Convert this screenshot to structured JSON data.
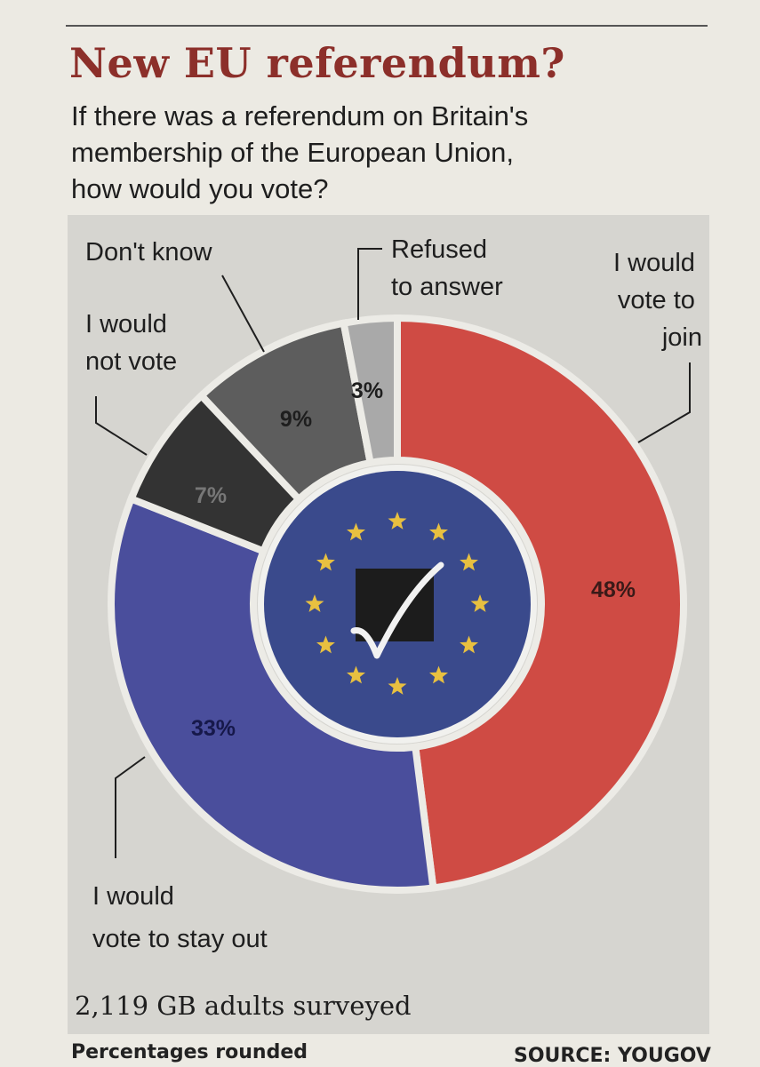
{
  "title": "New EU referendum?",
  "subtitle_lines": [
    "If there was a referendum on Britain's",
    "membership of the European Union,",
    "how would you vote?"
  ],
  "chart_data": {
    "type": "pie",
    "style": "donut",
    "slices": [
      {
        "label": "I would vote to join",
        "value": 48,
        "value_label": "48%",
        "color": "#cf4b44"
      },
      {
        "label": "I would vote to stay out",
        "value": 33,
        "value_label": "33%",
        "color": "#4a4e9c"
      },
      {
        "label": "I would not vote",
        "value": 7,
        "value_label": "7%",
        "color": "#333333"
      },
      {
        "label": "Don't know",
        "value": 9,
        "value_label": "9%",
        "color": "#5d5d5d"
      },
      {
        "label": "Refused to answer",
        "value": 3,
        "value_label": "3%",
        "color": "#a9a9a9"
      }
    ]
  },
  "labels": {
    "join": [
      "I would",
      "vote to",
      "join"
    ],
    "stay_out": [
      "I would",
      "vote to stay out"
    ],
    "not_vote": [
      "I would",
      "not vote"
    ],
    "dont_know": [
      "Don't know"
    ],
    "refused": [
      "Refused",
      "to answer"
    ]
  },
  "center_emblem": {
    "icon": "eu-flag-ballot-check-icon",
    "background": "#3a4a8c",
    "star_color": "#e8c040"
  },
  "footnote_survey": "2,119 GB adults surveyed",
  "footer_left": "Percentages rounded",
  "footer_right": "SOURCE: YOUGOV"
}
